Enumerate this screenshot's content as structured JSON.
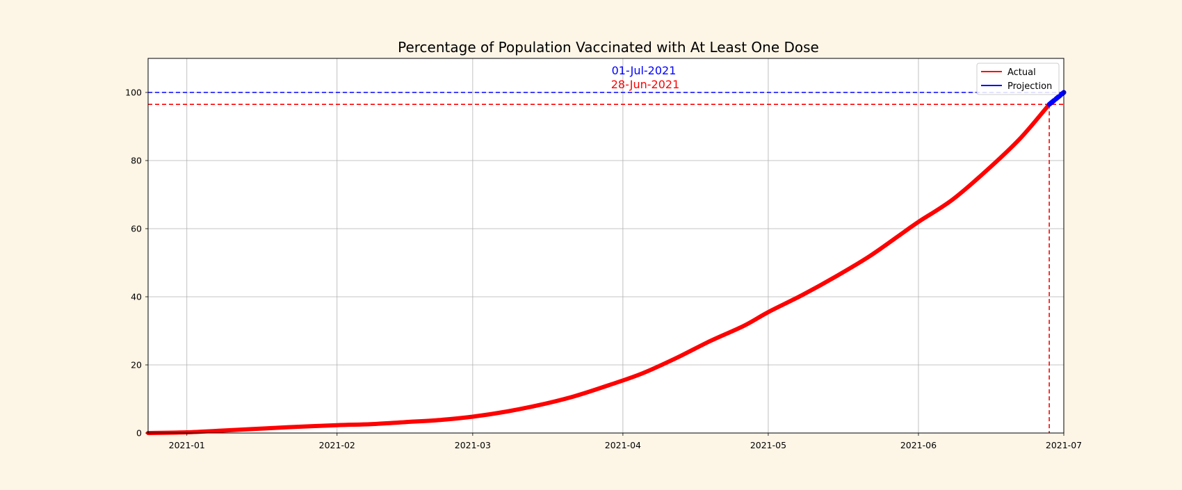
{
  "chart_data": {
    "type": "line",
    "title": "Percentage of Population Vaccinated with At Least One Dose",
    "xlabel": "",
    "ylabel": "",
    "x_axis": {
      "type": "date",
      "range": [
        "2020-12-24",
        "2021-07-01"
      ],
      "ticks": [
        "2021-01-01",
        "2021-02-01",
        "2021-03-01",
        "2021-04-01",
        "2021-05-01",
        "2021-06-01",
        "2021-07-01"
      ],
      "tick_labels": [
        "2021-01",
        "2021-02",
        "2021-03",
        "2021-04",
        "2021-05",
        "2021-06",
        "2021-07"
      ]
    },
    "y_axis": {
      "range": [
        0,
        110
      ],
      "ticks": [
        0,
        20,
        40,
        60,
        80,
        100
      ],
      "tick_labels": [
        "0",
        "20",
        "40",
        "60",
        "80",
        "100"
      ]
    },
    "grid": true,
    "legend": {
      "placement": "top-right",
      "entries": [
        {
          "label": "Actual",
          "color": "#ff0000"
        },
        {
          "label": "Projection",
          "color": "#0000ff"
        }
      ]
    },
    "series": [
      {
        "name": "Actual",
        "color": "#ff0000",
        "points": [
          [
            "2020-12-24",
            0.0
          ],
          [
            "2021-01-01",
            0.2
          ],
          [
            "2021-01-08",
            0.7
          ],
          [
            "2021-01-15",
            1.2
          ],
          [
            "2021-01-22",
            1.7
          ],
          [
            "2021-02-01",
            2.3
          ],
          [
            "2021-02-08",
            2.6
          ],
          [
            "2021-02-15",
            3.2
          ],
          [
            "2021-02-22",
            3.8
          ],
          [
            "2021-03-01",
            4.8
          ],
          [
            "2021-03-08",
            6.3
          ],
          [
            "2021-03-15",
            8.3
          ],
          [
            "2021-03-22",
            10.8
          ],
          [
            "2021-03-29",
            14.0
          ],
          [
            "2021-04-05",
            17.5
          ],
          [
            "2021-04-12",
            22.0
          ],
          [
            "2021-04-19",
            27.0
          ],
          [
            "2021-04-26",
            31.5
          ],
          [
            "2021-05-01",
            35.5
          ],
          [
            "2021-05-08",
            40.5
          ],
          [
            "2021-05-15",
            46.0
          ],
          [
            "2021-05-22",
            52.0
          ],
          [
            "2021-05-29",
            59.0
          ],
          [
            "2021-06-01",
            62.0
          ],
          [
            "2021-06-08",
            68.5
          ],
          [
            "2021-06-15",
            77.0
          ],
          [
            "2021-06-22",
            86.5
          ],
          [
            "2021-06-28",
            96.5
          ]
        ]
      },
      {
        "name": "Projection",
        "color": "#0000ff",
        "points": [
          [
            "2021-06-28",
            96.5
          ],
          [
            "2021-07-01",
            100.0
          ]
        ]
      }
    ],
    "reference_lines": [
      {
        "orientation": "horizontal",
        "y": 100,
        "color": "#0000ff",
        "style": "dashed"
      },
      {
        "orientation": "horizontal",
        "y": 96.5,
        "color": "#ff0000",
        "style": "dashed"
      },
      {
        "orientation": "vertical",
        "x": "2021-06-28",
        "color": "#ff0000",
        "style": "dashed"
      }
    ],
    "annotations": [
      {
        "text": "01-Jul-2021",
        "color": "#0000ff"
      },
      {
        "text": "28-Jun-2021",
        "color": "#ff0000"
      }
    ]
  }
}
